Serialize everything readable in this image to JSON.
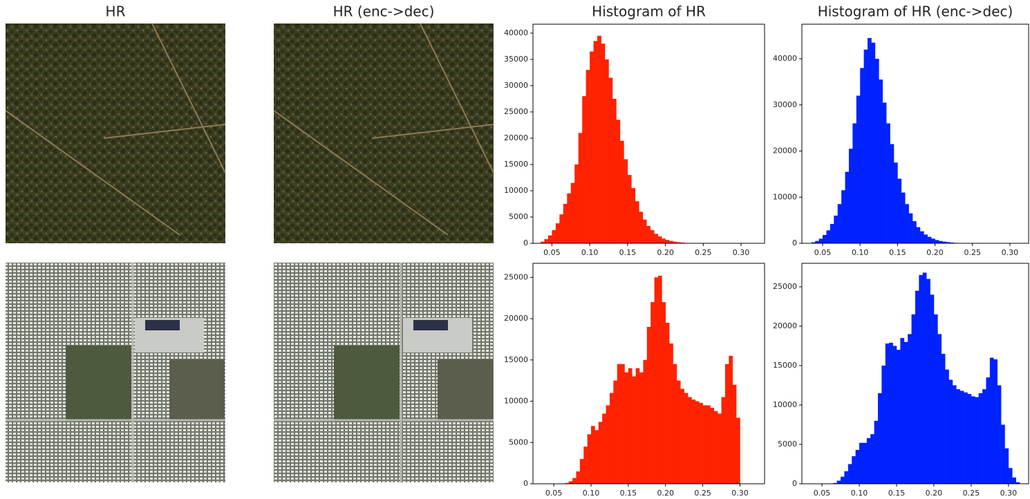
{
  "panels": [
    {
      "title": "HR"
    },
    {
      "title": "HR (enc->dec)"
    }
  ],
  "chart_data": [
    {
      "type": "histogram",
      "title": "Histogram of HR",
      "color": "#ff2200",
      "bins": [
        0.035,
        0.04,
        0.045,
        0.05,
        0.055,
        0.06,
        0.065,
        0.07,
        0.075,
        0.08,
        0.085,
        0.09,
        0.095,
        0.1,
        0.105,
        0.11,
        0.115,
        0.12,
        0.125,
        0.13,
        0.135,
        0.14,
        0.145,
        0.15,
        0.155,
        0.16,
        0.165,
        0.17,
        0.175,
        0.18,
        0.185,
        0.19,
        0.195,
        0.2,
        0.205,
        0.21,
        0.215,
        0.22,
        0.225,
        0.23,
        0.235,
        0.24,
        0.245,
        0.25
      ],
      "counts": [
        300,
        800,
        1500,
        2500,
        3800,
        5500,
        7500,
        9500,
        11500,
        15000,
        21000,
        28000,
        33000,
        36500,
        38500,
        39500,
        38000,
        35000,
        31500,
        27500,
        23500,
        19500,
        16000,
        13000,
        10500,
        8000,
        6000,
        4500,
        3300,
        2500,
        1800,
        1300,
        900,
        650,
        450,
        300,
        200,
        130,
        80,
        50,
        30,
        20,
        10
      ],
      "xlim": [
        0.025,
        0.331
      ],
      "xticks": [
        0.05,
        {
          "value": 0.1,
          "label": "0.10"
        },
        0.15,
        {
          "value": 0.2,
          "label": "0.20"
        },
        0.25,
        {
          "value": 0.3,
          "label": "0.30"
        }
      ],
      "ylim": [
        0,
        41700
      ],
      "yticks": [
        0,
        5000,
        10000,
        15000,
        20000,
        25000,
        30000,
        35000,
        40000
      ]
    },
    {
      "type": "histogram",
      "title": "Histogram of HR (enc->dec)",
      "color": "#0022ff",
      "bins": [
        0.035,
        0.04,
        0.045,
        0.05,
        0.055,
        0.06,
        0.065,
        0.07,
        0.075,
        0.08,
        0.085,
        0.09,
        0.095,
        0.1,
        0.105,
        0.11,
        0.115,
        0.12,
        0.125,
        0.13,
        0.135,
        0.14,
        0.145,
        0.15,
        0.155,
        0.16,
        0.165,
        0.17,
        0.175,
        0.18,
        0.185,
        0.19,
        0.195,
        0.2,
        0.205,
        0.21,
        0.215,
        0.22,
        0.225,
        0.23,
        0.235,
        0.24,
        0.245,
        0.25
      ],
      "counts": [
        200,
        500,
        1000,
        1800,
        2800,
        4200,
        6000,
        8500,
        11500,
        15500,
        20500,
        26000,
        32000,
        38000,
        42000,
        44500,
        43500,
        40000,
        35500,
        30500,
        26000,
        21500,
        17500,
        14000,
        11000,
        8500,
        6500,
        4800,
        3500,
        2600,
        1900,
        1400,
        1000,
        700,
        500,
        350,
        250,
        160,
        100,
        60,
        40,
        20,
        10
      ],
      "xlim": [
        0.0223,
        0.325
      ],
      "xticks": [
        0.05,
        {
          "value": 0.1,
          "label": "0.10"
        },
        0.15,
        {
          "value": 0.2,
          "label": "0.20"
        },
        0.25,
        {
          "value": 0.3,
          "label": "0.30"
        }
      ],
      "ylim": [
        0,
        47500
      ],
      "yticks": [
        0,
        10000,
        20000,
        30000,
        40000
      ]
    },
    {
      "type": "histogram",
      "color": "#ff2200",
      "bins": [
        0.065,
        0.07,
        0.075,
        0.08,
        0.085,
        0.09,
        0.095,
        0.1,
        0.105,
        0.11,
        0.115,
        0.12,
        0.125,
        0.13,
        0.135,
        0.14,
        0.145,
        0.15,
        0.155,
        0.16,
        0.165,
        0.17,
        0.175,
        0.18,
        0.185,
        0.19,
        0.195,
        0.2,
        0.205,
        0.21,
        0.215,
        0.22,
        0.225,
        0.23,
        0.235,
        0.24,
        0.245,
        0.25,
        0.255,
        0.26,
        0.265,
        0.27,
        0.275,
        0.28,
        0.285,
        0.29,
        0.295,
        0.3
      ],
      "counts": [
        100,
        300,
        700,
        1500,
        3000,
        4500,
        6000,
        7000,
        6500,
        7500,
        8500,
        9500,
        11000,
        12500,
        14500,
        14500,
        13500,
        14000,
        13000,
        14000,
        13500,
        15000,
        19000,
        22000,
        25000,
        25200,
        22000,
        19500,
        17000,
        14500,
        12500,
        11500,
        11000,
        10500,
        10200,
        10000,
        9800,
        9500,
        9500,
        9200,
        8800,
        8500,
        10500,
        14500,
        15500,
        12000,
        8000
      ],
      "xlim": [
        0.022,
        0.333
      ],
      "xticks": [
        0.05,
        {
          "value": 0.1,
          "label": "0.10"
        },
        0.15,
        {
          "value": 0.2,
          "label": "0.20"
        },
        0.25,
        {
          "value": 0.3,
          "label": "0.30"
        }
      ],
      "ylim": [
        0,
        26700
      ],
      "yticks": [
        0,
        5000,
        10000,
        15000,
        20000,
        25000
      ]
    },
    {
      "type": "histogram",
      "color": "#0022ff",
      "bins": [
        0.065,
        0.07,
        0.075,
        0.08,
        0.085,
        0.09,
        0.095,
        0.1,
        0.105,
        0.11,
        0.115,
        0.12,
        0.125,
        0.13,
        0.135,
        0.14,
        0.145,
        0.15,
        0.155,
        0.16,
        0.165,
        0.17,
        0.175,
        0.18,
        0.185,
        0.19,
        0.195,
        0.2,
        0.205,
        0.21,
        0.215,
        0.22,
        0.225,
        0.23,
        0.235,
        0.24,
        0.245,
        0.25,
        0.255,
        0.26,
        0.265,
        0.27,
        0.275,
        0.28,
        0.285,
        0.29,
        0.295,
        0.3,
        0.305,
        0.31,
        0.315
      ],
      "counts": [
        100,
        400,
        900,
        1600,
        2500,
        3500,
        4300,
        5200,
        5200,
        5800,
        6300,
        8000,
        11500,
        15000,
        17800,
        17900,
        17500,
        17000,
        18500,
        18000,
        19000,
        21500,
        24500,
        26500,
        26800,
        26000,
        24000,
        21500,
        19000,
        16500,
        14500,
        13200,
        12500,
        12000,
        11800,
        11600,
        11400,
        11100,
        11000,
        11500,
        12000,
        13500,
        16000,
        15800,
        12500,
        7500,
        4500,
        2000,
        800,
        200
      ],
      "xlim": [
        0.0231,
        0.327
      ],
      "xticks": [
        0.05,
        {
          "value": 0.1,
          "label": "0.10"
        },
        0.15,
        {
          "value": 0.2,
          "label": "0.20"
        },
        0.25,
        {
          "value": 0.3,
          "label": "0.30"
        }
      ],
      "ylim": [
        0,
        27980
      ],
      "yticks": [
        0,
        5000,
        10000,
        15000,
        20000,
        25000
      ]
    }
  ]
}
